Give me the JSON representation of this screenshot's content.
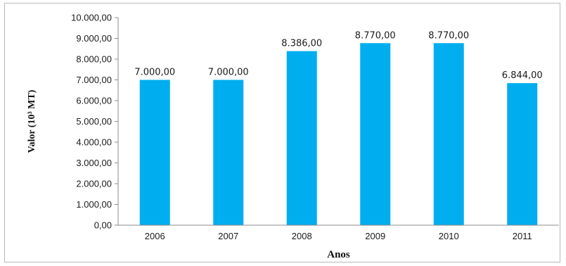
{
  "chart_data": {
    "type": "bar",
    "categories": [
      "2006",
      "2007",
      "2008",
      "2009",
      "2010",
      "2011"
    ],
    "values": [
      7000,
      7000,
      8386,
      8770,
      8770,
      6844
    ],
    "data_labels": [
      "7.000,00",
      "7.000,00",
      "8.386,00",
      "8.770,00",
      "8.770,00",
      "6.844,00"
    ],
    "y_ticks": [
      0,
      1000,
      2000,
      3000,
      4000,
      5000,
      6000,
      7000,
      8000,
      9000,
      10000
    ],
    "y_tick_labels": [
      "0,00",
      "1.000,00",
      "2.000,00",
      "3.000,00",
      "4.000,00",
      "5.000,00",
      "6.000,00",
      "7.000,00",
      "8.000,00",
      "9.000,00",
      "10.000,00"
    ],
    "xlabel": "Anos",
    "ylabel": "Valor (10³ MT)",
    "ylim": [
      0,
      10000
    ],
    "bar_color": "#00aeef",
    "grid": false,
    "legend": "none"
  }
}
